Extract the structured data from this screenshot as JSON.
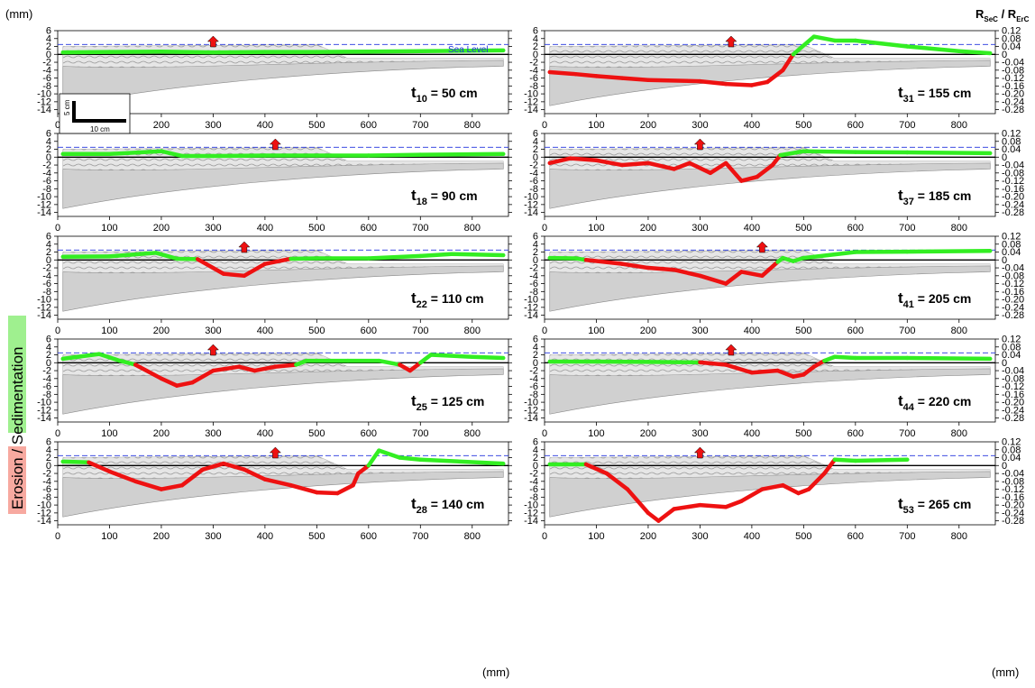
{
  "figure": {
    "left_axis_unit": "(mm)",
    "bottom_axis_unit": "(mm)",
    "right_axis_label_main": "R",
    "right_axis_label_sub1": "SeC",
    "right_axis_label_sep": " / R",
    "right_axis_label_sub2": "ErC",
    "side_label_erosion": "Erosion",
    "side_label_slash": " / ",
    "side_label_sedimentation": "Sedimentation",
    "sea_level_label": "Sea Level",
    "scale_bar_vertical": "5 cm",
    "scale_bar_horizontal": "10 cm",
    "colors": {
      "sedimentation": "#33ee22",
      "erosion": "#ee1111",
      "sea_level": "#2233dd",
      "uplift_arrow": "#ee1111",
      "erosion_label_bg": "#f7a9a0",
      "sedimentation_label_bg": "#9ff08f"
    }
  },
  "chart_data": {
    "type": "line",
    "x_axis": {
      "range": [
        0,
        870
      ],
      "ticks": [
        0,
        100,
        200,
        300,
        400,
        500,
        600,
        700,
        800
      ]
    },
    "y_axis_left": {
      "range": [
        -15,
        6
      ],
      "ticks": [
        6,
        4,
        2,
        0,
        -2,
        -4,
        -6,
        -8,
        -10,
        -12,
        -14
      ]
    },
    "y_axis_right": {
      "ticks": [
        "0.12",
        "0.08",
        "0.04",
        "0",
        "-0.04",
        "-0.08",
        "-0.12",
        "-0.16",
        "-0.20",
        "-0.24",
        "-0.28"
      ]
    },
    "sea_level_y": 2.5,
    "panels": [
      {
        "stage_main": "t",
        "stage_sub": "10",
        "stage_rest": " = 50 cm",
        "points": [
          [
            10,
            0.5
          ],
          [
            100,
            0.6
          ],
          [
            200,
            0.7
          ],
          [
            300,
            0.5
          ],
          [
            400,
            0.6
          ],
          [
            500,
            0.6
          ],
          [
            600,
            0.7
          ],
          [
            700,
            0.8
          ],
          [
            860,
            1.0
          ]
        ]
      },
      {
        "stage_main": "t",
        "stage_sub": "31",
        "stage_rest": " = 155 cm",
        "points": [
          [
            10,
            -4.5
          ],
          [
            60,
            -5.0
          ],
          [
            100,
            -5.5
          ],
          [
            150,
            -6
          ],
          [
            200,
            -6.5
          ],
          [
            300,
            -6.8
          ],
          [
            350,
            -7.5
          ],
          [
            400,
            -7.8
          ],
          [
            430,
            -7
          ],
          [
            460,
            -4
          ],
          [
            480,
            0
          ],
          [
            520,
            4.5
          ],
          [
            560,
            3.5
          ],
          [
            600,
            3.5
          ],
          [
            700,
            2
          ],
          [
            800,
            0.8
          ],
          [
            860,
            0.3
          ]
        ]
      },
      {
        "stage_main": "t",
        "stage_sub": "18",
        "stage_rest": " = 90 cm",
        "points": [
          [
            10,
            0.8
          ],
          [
            100,
            0.8
          ],
          [
            200,
            1.5
          ],
          [
            240,
            0.3
          ],
          [
            300,
            0.3
          ],
          [
            400,
            0.4
          ],
          [
            500,
            0.4
          ],
          [
            600,
            0.4
          ],
          [
            700,
            0.6
          ],
          [
            860,
            0.8
          ]
        ]
      },
      {
        "stage_main": "t",
        "stage_sub": "37",
        "stage_rest": " = 185 cm",
        "points": [
          [
            10,
            -1.5
          ],
          [
            50,
            -0.3
          ],
          [
            100,
            -0.8
          ],
          [
            150,
            -2
          ],
          [
            200,
            -1.5
          ],
          [
            250,
            -3
          ],
          [
            280,
            -1.5
          ],
          [
            320,
            -4
          ],
          [
            350,
            -1.5
          ],
          [
            380,
            -6
          ],
          [
            410,
            -5
          ],
          [
            440,
            -2
          ],
          [
            455,
            0.5
          ],
          [
            500,
            1.5
          ],
          [
            600,
            1.3
          ],
          [
            700,
            1.2
          ],
          [
            860,
            1
          ]
        ]
      },
      {
        "stage_main": "t",
        "stage_sub": "22",
        "stage_rest": " = 110 cm",
        "points": [
          [
            10,
            0.8
          ],
          [
            100,
            0.9
          ],
          [
            190,
            1.8
          ],
          [
            230,
            0.3
          ],
          [
            270,
            0.2
          ],
          [
            320,
            -3.5
          ],
          [
            360,
            -4
          ],
          [
            400,
            -1
          ],
          [
            450,
            0.3
          ],
          [
            500,
            0.4
          ],
          [
            600,
            0.4
          ],
          [
            700,
            1
          ],
          [
            760,
            1.5
          ],
          [
            860,
            1.2
          ]
        ]
      },
      {
        "stage_main": "t",
        "stage_sub": "41",
        "stage_rest": " = 205 cm",
        "points": [
          [
            10,
            0.5
          ],
          [
            60,
            0.4
          ],
          [
            80,
            0
          ],
          [
            150,
            -1
          ],
          [
            200,
            -2
          ],
          [
            250,
            -2.5
          ],
          [
            300,
            -4
          ],
          [
            350,
            -6
          ],
          [
            380,
            -3
          ],
          [
            420,
            -4
          ],
          [
            450,
            -0.5
          ],
          [
            460,
            0.5
          ],
          [
            480,
            -0.3
          ],
          [
            500,
            0.5
          ],
          [
            600,
            2
          ],
          [
            700,
            2.1
          ],
          [
            860,
            2.3
          ]
        ]
      },
      {
        "stage_main": "t",
        "stage_sub": "25",
        "stage_rest": " = 125 cm",
        "points": [
          [
            10,
            1
          ],
          [
            80,
            2.2
          ],
          [
            120,
            0.5
          ],
          [
            150,
            -0.5
          ],
          [
            200,
            -4
          ],
          [
            230,
            -5.8
          ],
          [
            260,
            -5
          ],
          [
            300,
            -2
          ],
          [
            350,
            -1
          ],
          [
            380,
            -2
          ],
          [
            420,
            -1
          ],
          [
            460,
            -0.5
          ],
          [
            480,
            0.5
          ],
          [
            560,
            0.5
          ],
          [
            620,
            0.5
          ],
          [
            660,
            -0.5
          ],
          [
            680,
            -2
          ],
          [
            700,
            0
          ],
          [
            720,
            2
          ],
          [
            800,
            1.5
          ],
          [
            860,
            1.2
          ]
        ]
      },
      {
        "stage_main": "t",
        "stage_sub": "44",
        "stage_rest": " = 220 cm",
        "points": [
          [
            10,
            0.3
          ],
          [
            100,
            0.3
          ],
          [
            200,
            0.2
          ],
          [
            300,
            0.1
          ],
          [
            350,
            -0.5
          ],
          [
            400,
            -2.5
          ],
          [
            450,
            -2
          ],
          [
            480,
            -3.5
          ],
          [
            500,
            -3
          ],
          [
            520,
            -1
          ],
          [
            540,
            0.5
          ],
          [
            560,
            1.5
          ],
          [
            600,
            1.2
          ],
          [
            700,
            1.2
          ],
          [
            860,
            1.0
          ]
        ]
      },
      {
        "stage_main": "t",
        "stage_sub": "28",
        "stage_rest": " = 140 cm",
        "points": [
          [
            10,
            1
          ],
          [
            60,
            0.8
          ],
          [
            100,
            -1.5
          ],
          [
            150,
            -4
          ],
          [
            200,
            -6
          ],
          [
            240,
            -5
          ],
          [
            280,
            -1
          ],
          [
            320,
            0.5
          ],
          [
            360,
            -1
          ],
          [
            400,
            -3.5
          ],
          [
            450,
            -5
          ],
          [
            500,
            -6.8
          ],
          [
            540,
            -7
          ],
          [
            570,
            -5
          ],
          [
            580,
            -2
          ],
          [
            600,
            0
          ],
          [
            620,
            3.8
          ],
          [
            660,
            2
          ],
          [
            700,
            1.5
          ],
          [
            860,
            0.5
          ]
        ]
      },
      {
        "stage_main": "t",
        "stage_sub": "53",
        "stage_rest": " = 265 cm",
        "points": [
          [
            10,
            0.3
          ],
          [
            80,
            0.3
          ],
          [
            120,
            -2
          ],
          [
            160,
            -6
          ],
          [
            200,
            -12
          ],
          [
            220,
            -14
          ],
          [
            250,
            -11
          ],
          [
            300,
            -10
          ],
          [
            350,
            -10.5
          ],
          [
            380,
            -9
          ],
          [
            420,
            -6
          ],
          [
            460,
            -5
          ],
          [
            490,
            -7
          ],
          [
            510,
            -6
          ],
          [
            540,
            -2
          ],
          [
            560,
            1.5
          ],
          [
            600,
            1.2
          ],
          [
            700,
            1.5
          ]
        ]
      }
    ]
  }
}
